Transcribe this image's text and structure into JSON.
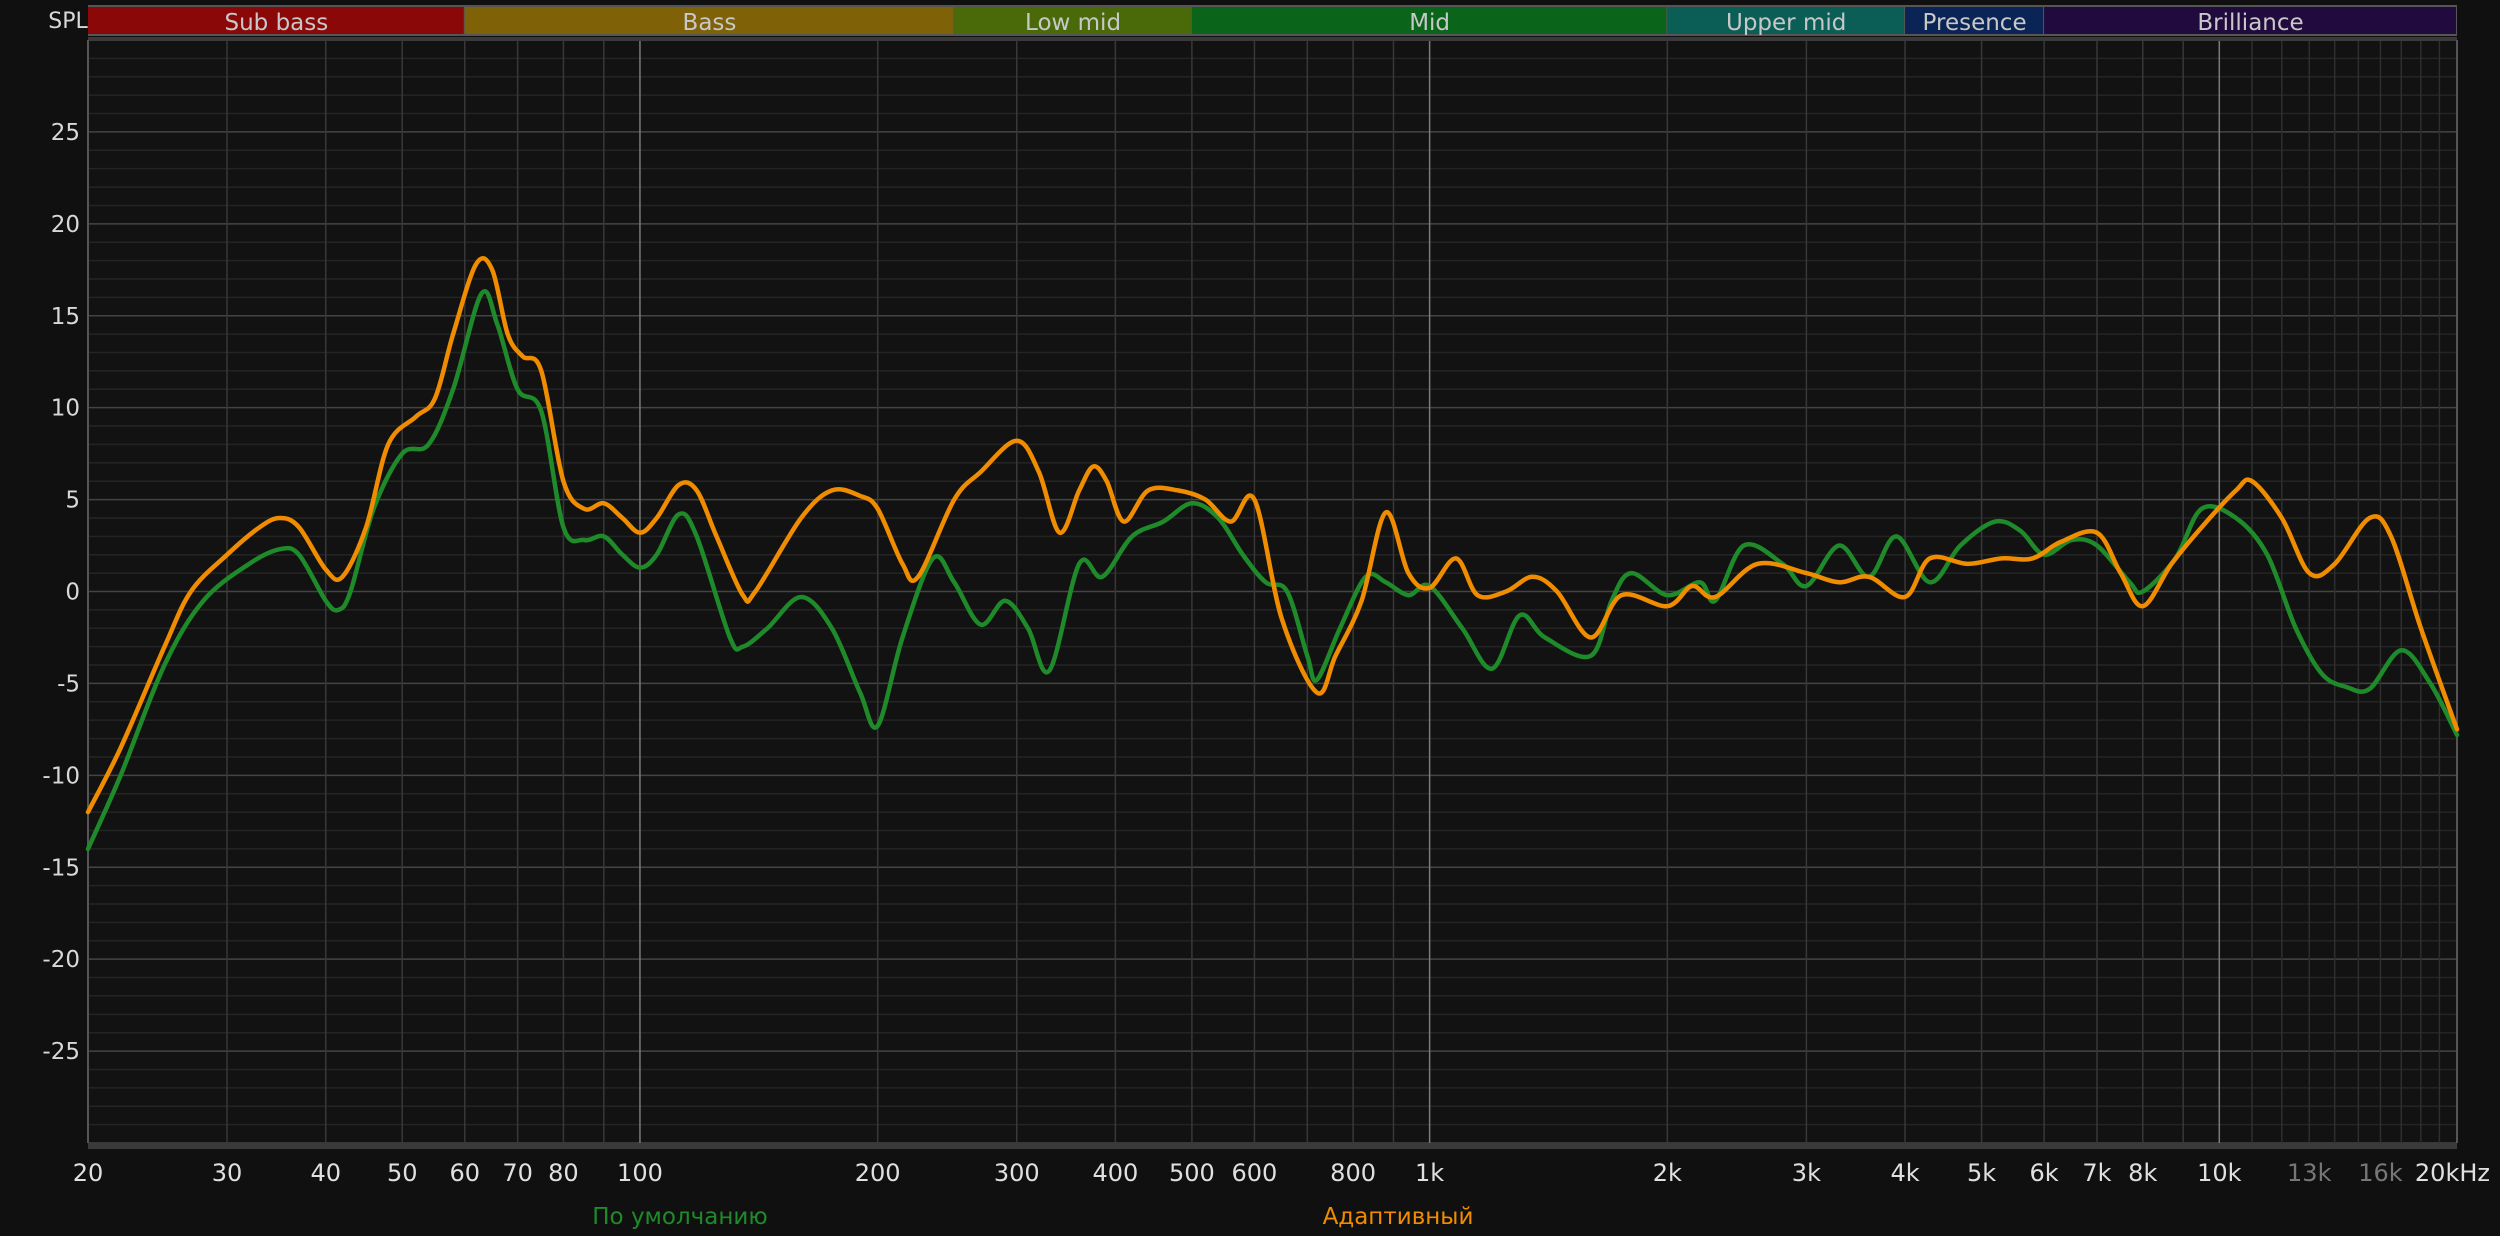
{
  "chart_data": {
    "type": "line",
    "ylabel": "SPL",
    "x_scale": "log",
    "xlim": [
      20,
      20000
    ],
    "ylim": [
      -30,
      30
    ],
    "grid": true,
    "yticks": [
      25,
      20,
      15,
      10,
      5,
      0,
      -5,
      -10,
      -15,
      -20,
      -25
    ],
    "xticks": [
      {
        "f": 20,
        "label": "20"
      },
      {
        "f": 30,
        "label": "30"
      },
      {
        "f": 40,
        "label": "40"
      },
      {
        "f": 50,
        "label": "50"
      },
      {
        "f": 60,
        "label": "60"
      },
      {
        "f": 70,
        "label": "70"
      },
      {
        "f": 80,
        "label": "80"
      },
      {
        "f": 100,
        "label": "100"
      },
      {
        "f": 200,
        "label": "200"
      },
      {
        "f": 300,
        "label": "300"
      },
      {
        "f": 400,
        "label": "400"
      },
      {
        "f": 500,
        "label": "500"
      },
      {
        "f": 600,
        "label": "600"
      },
      {
        "f": 800,
        "label": "800"
      },
      {
        "f": 1000,
        "label": "1k"
      },
      {
        "f": 2000,
        "label": "2k"
      },
      {
        "f": 3000,
        "label": "3k"
      },
      {
        "f": 4000,
        "label": "4k"
      },
      {
        "f": 5000,
        "label": "5k"
      },
      {
        "f": 6000,
        "label": "6k"
      },
      {
        "f": 7000,
        "label": "7k"
      },
      {
        "f": 8000,
        "label": "8k"
      },
      {
        "f": 10000,
        "label": "10k"
      },
      {
        "f": 13000,
        "label": "13k",
        "dim": true
      },
      {
        "f": 16000,
        "label": "16k",
        "dim": true
      },
      {
        "f": 20000,
        "label": "20kHz"
      }
    ],
    "bands": [
      {
        "name": "Sub bass",
        "from": 20,
        "to": 60,
        "color": "#8b0808"
      },
      {
        "name": "Bass",
        "from": 60,
        "to": 250,
        "color": "#7f6208"
      },
      {
        "name": "Low mid",
        "from": 250,
        "to": 500,
        "color": "#4a6a0a"
      },
      {
        "name": "Mid",
        "from": 500,
        "to": 2000,
        "color": "#0a6419"
      },
      {
        "name": "Upper mid",
        "from": 2000,
        "to": 4000,
        "color": "#0a5e55"
      },
      {
        "name": "Presence",
        "from": 4000,
        "to": 6000,
        "color": "#0a2456"
      },
      {
        "name": "Brilliance",
        "from": 6000,
        "to": 20000,
        "color": "#210a3d"
      }
    ],
    "legend_placement": "bottom",
    "series": [
      {
        "name": "По умолчанию",
        "color": "#1f8a2a",
        "points": [
          [
            20,
            -14
          ],
          [
            22,
            -10
          ],
          [
            25,
            -4
          ],
          [
            28,
            -0.5
          ],
          [
            32,
            1.5
          ],
          [
            35,
            2.3
          ],
          [
            37,
            2
          ],
          [
            40,
            -0.5
          ],
          [
            41.5,
            -1
          ],
          [
            43,
            0
          ],
          [
            46,
            4.5
          ],
          [
            50,
            7.5
          ],
          [
            54,
            8
          ],
          [
            58,
            11
          ],
          [
            63,
            16.2
          ],
          [
            66,
            14.5
          ],
          [
            70,
            11
          ],
          [
            75,
            9.8
          ],
          [
            80,
            3.5
          ],
          [
            85,
            2.8
          ],
          [
            90,
            3
          ],
          [
            95,
            2
          ],
          [
            100,
            1.3
          ],
          [
            105,
            2
          ],
          [
            112,
            4.2
          ],
          [
            118,
            3
          ],
          [
            130,
            -2.5
          ],
          [
            135,
            -3
          ],
          [
            145,
            -2
          ],
          [
            160,
            -0.3
          ],
          [
            175,
            -2
          ],
          [
            190,
            -5.5
          ],
          [
            200,
            -7.3
          ],
          [
            215,
            -2.5
          ],
          [
            235,
            1.8
          ],
          [
            250,
            0.5
          ],
          [
            270,
            -1.8
          ],
          [
            290,
            -0.5
          ],
          [
            310,
            -2
          ],
          [
            330,
            -4.3
          ],
          [
            360,
            1.5
          ],
          [
            385,
            0.8
          ],
          [
            420,
            3
          ],
          [
            460,
            3.8
          ],
          [
            500,
            4.8
          ],
          [
            540,
            4
          ],
          [
            580,
            2
          ],
          [
            620,
            0.5
          ],
          [
            660,
            0
          ],
          [
            700,
            -3.5
          ],
          [
            720,
            -4.8
          ],
          [
            770,
            -2
          ],
          [
            830,
            0.8
          ],
          [
            880,
            0.5
          ],
          [
            940,
            -0.2
          ],
          [
            1000,
            0.3
          ],
          [
            1100,
            -2
          ],
          [
            1200,
            -4.2
          ],
          [
            1300,
            -1.3
          ],
          [
            1400,
            -2.5
          ],
          [
            1600,
            -3.5
          ],
          [
            1700,
            -0.5
          ],
          [
            1800,
            1
          ],
          [
            2000,
            -0.2
          ],
          [
            2200,
            0.5
          ],
          [
            2300,
            -0.5
          ],
          [
            2500,
            2.5
          ],
          [
            2800,
            1.5
          ],
          [
            3000,
            0.3
          ],
          [
            3300,
            2.5
          ],
          [
            3600,
            0.8
          ],
          [
            3900,
            3
          ],
          [
            4300,
            0.5
          ],
          [
            4700,
            2.5
          ],
          [
            5200,
            3.8
          ],
          [
            5600,
            3.3
          ],
          [
            6000,
            2
          ],
          [
            6500,
            2.8
          ],
          [
            7000,
            2.5
          ],
          [
            7700,
            0.5
          ],
          [
            8000,
            0
          ],
          [
            8800,
            1.8
          ],
          [
            9500,
            4.5
          ],
          [
            10500,
            4
          ],
          [
            11500,
            2
          ],
          [
            12500,
            -2
          ],
          [
            13500,
            -4.5
          ],
          [
            14500,
            -5.2
          ],
          [
            15500,
            -5.3
          ],
          [
            17000,
            -3.2
          ],
          [
            18500,
            -5
          ],
          [
            20000,
            -7.8
          ]
        ]
      },
      {
        "name": "Адаптивный",
        "color": "#f08c00",
        "points": [
          [
            20,
            -12
          ],
          [
            22,
            -8.5
          ],
          [
            25,
            -3
          ],
          [
            27,
            0
          ],
          [
            30,
            2
          ],
          [
            33,
            3.5
          ],
          [
            35,
            4
          ],
          [
            37,
            3.5
          ],
          [
            40,
            1.2
          ],
          [
            42,
            0.8
          ],
          [
            45,
            3.5
          ],
          [
            48,
            8
          ],
          [
            52,
            9.5
          ],
          [
            55,
            10.5
          ],
          [
            58,
            14
          ],
          [
            62,
            17.8
          ],
          [
            65,
            17.5
          ],
          [
            68,
            14
          ],
          [
            71,
            12.8
          ],
          [
            75,
            12
          ],
          [
            80,
            6
          ],
          [
            85,
            4.5
          ],
          [
            90,
            4.8
          ],
          [
            95,
            4
          ],
          [
            100,
            3.2
          ],
          [
            105,
            4
          ],
          [
            112,
            5.8
          ],
          [
            118,
            5.5
          ],
          [
            125,
            3
          ],
          [
            135,
            -0.2
          ],
          [
            140,
            0
          ],
          [
            160,
            4
          ],
          [
            175,
            5.5
          ],
          [
            190,
            5.2
          ],
          [
            200,
            4.5
          ],
          [
            215,
            1.5
          ],
          [
            225,
            0.8
          ],
          [
            250,
            5
          ],
          [
            270,
            6.5
          ],
          [
            300,
            8.2
          ],
          [
            320,
            6.5
          ],
          [
            340,
            3.2
          ],
          [
            360,
            5.5
          ],
          [
            375,
            6.8
          ],
          [
            390,
            6
          ],
          [
            410,
            3.8
          ],
          [
            440,
            5.5
          ],
          [
            480,
            5.5
          ],
          [
            520,
            5
          ],
          [
            560,
            3.8
          ],
          [
            600,
            5
          ],
          [
            650,
            -1.5
          ],
          [
            720,
            -5.5
          ],
          [
            760,
            -3.5
          ],
          [
            820,
            -0.5
          ],
          [
            880,
            4.3
          ],
          [
            940,
            1
          ],
          [
            1000,
            0.2
          ],
          [
            1080,
            1.8
          ],
          [
            1150,
            -0.2
          ],
          [
            1250,
            0
          ],
          [
            1350,
            0.8
          ],
          [
            1450,
            0
          ],
          [
            1600,
            -2.5
          ],
          [
            1750,
            -0.2
          ],
          [
            2000,
            -0.8
          ],
          [
            2150,
            0.3
          ],
          [
            2300,
            -0.3
          ],
          [
            2600,
            1.5
          ],
          [
            3000,
            1
          ],
          [
            3300,
            0.5
          ],
          [
            3600,
            0.8
          ],
          [
            4000,
            -0.3
          ],
          [
            4300,
            1.8
          ],
          [
            4800,
            1.5
          ],
          [
            5300,
            1.8
          ],
          [
            5800,
            1.8
          ],
          [
            6300,
            2.7
          ],
          [
            7000,
            3.2
          ],
          [
            7500,
            1
          ],
          [
            8000,
            -0.8
          ],
          [
            8700,
            1.5
          ],
          [
            9500,
            3.5
          ],
          [
            10500,
            5.5
          ],
          [
            11000,
            6
          ],
          [
            12000,
            4
          ],
          [
            13000,
            1
          ],
          [
            14000,
            1.5
          ],
          [
            15500,
            4
          ],
          [
            16500,
            3
          ],
          [
            18000,
            -2
          ],
          [
            20000,
            -7.5
          ]
        ]
      }
    ]
  }
}
